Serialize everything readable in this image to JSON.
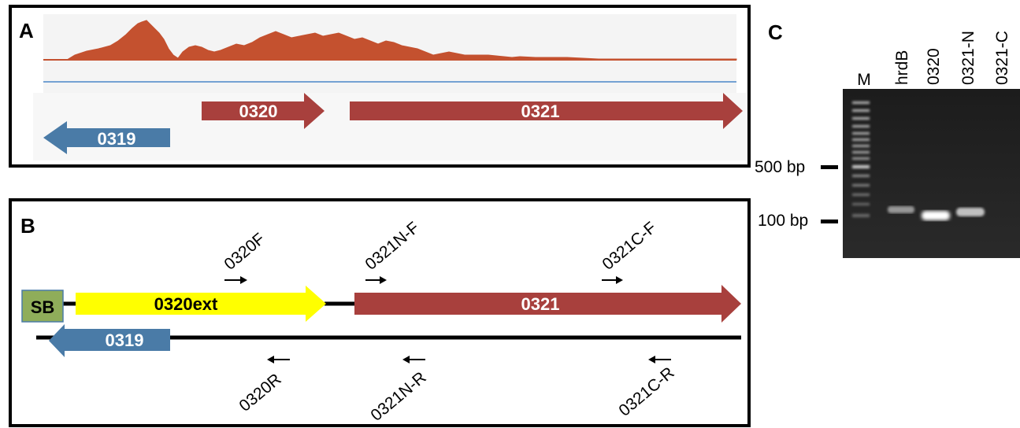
{
  "panel_a": {
    "letter": "A",
    "genes": [
      {
        "label": "0319",
        "strand": "reverse",
        "color": "#4a7ba7"
      },
      {
        "label": "0320",
        "strand": "forward",
        "color": "#a8403d"
      },
      {
        "label": "0321",
        "strand": "forward",
        "color": "#a8403d"
      }
    ],
    "coverage_color": "#c4512f",
    "baseline_color": "#4a86c8"
  },
  "panel_b": {
    "letter": "B",
    "sb_label": "SB",
    "sb_color": "#8fad5a",
    "gene_0320ext": {
      "label": "0320ext",
      "color": "#ffff00"
    },
    "gene_0321": {
      "label": "0321",
      "color": "#a8403d"
    },
    "gene_0319": {
      "label": "0319",
      "color": "#4a7ba7"
    },
    "primers_forward": [
      "0320F",
      "0321N-F",
      "0321C-F"
    ],
    "primers_reverse": [
      "0320R",
      "0321N-R",
      "0321C-R"
    ]
  },
  "panel_c": {
    "letter": "C",
    "lanes": [
      "M",
      "hrdB",
      "0320",
      "0321-N",
      "0321-C"
    ],
    "markers": [
      "500 bp",
      "100 bp"
    ]
  }
}
